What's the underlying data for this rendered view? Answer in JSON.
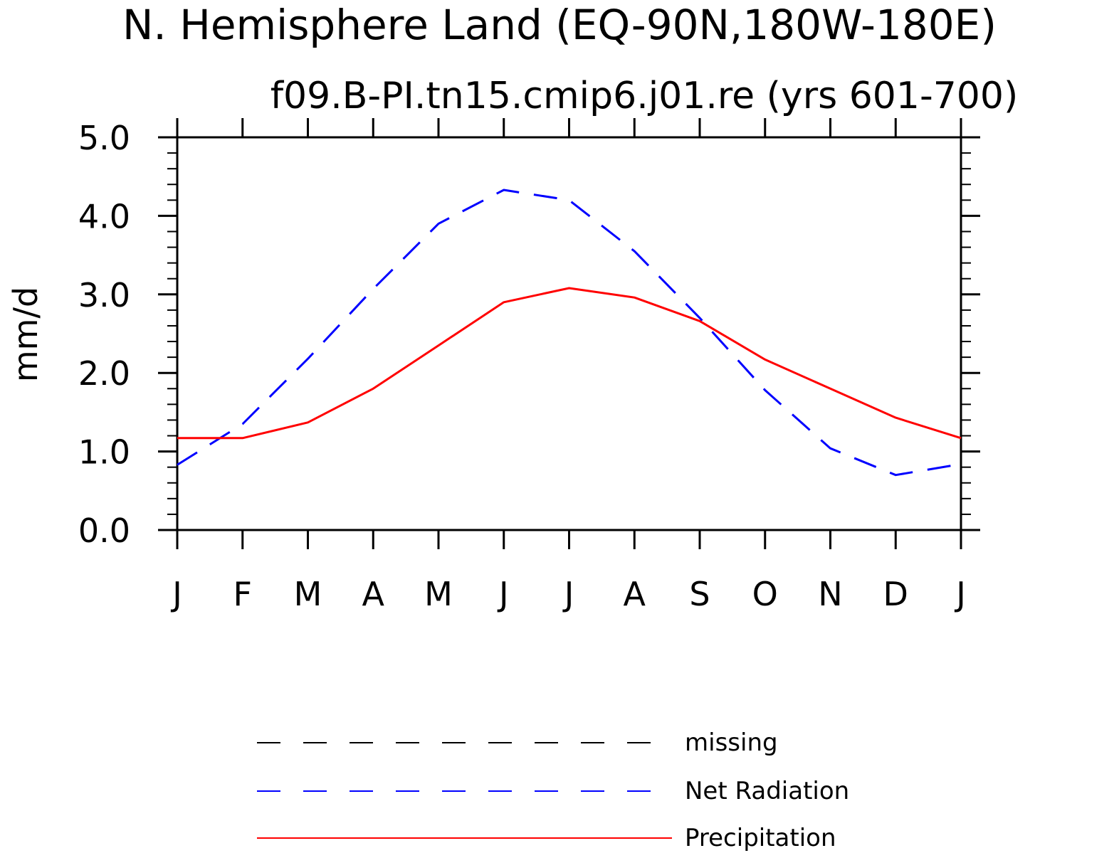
{
  "chart_data": {
    "type": "line",
    "title": "N. Hemisphere Land (EQ-90N,180W-180E)",
    "subtitle": "f09.B-PI.tn15.cmip6.j01.re (yrs 601-700)",
    "xlabel": "",
    "ylabel": "mm/d",
    "categories": [
      "J",
      "F",
      "M",
      "A",
      "M",
      "J",
      "J",
      "A",
      "S",
      "O",
      "N",
      "D",
      "J"
    ],
    "ylim": [
      0,
      5
    ],
    "yticks": [
      "0.0",
      "1.0",
      "2.0",
      "3.0",
      "4.0",
      "5.0"
    ],
    "series": [
      {
        "name": "Net Radiation",
        "color": "#0000ff",
        "dash": "dashed",
        "values": [
          0.83,
          1.35,
          2.18,
          3.07,
          3.9,
          4.33,
          4.2,
          3.55,
          2.7,
          1.78,
          1.04,
          0.7,
          0.84
        ]
      },
      {
        "name": "Precipitation",
        "color": "#ff0000",
        "dash": "solid",
        "values": [
          1.17,
          1.17,
          1.37,
          1.8,
          2.35,
          2.9,
          3.08,
          2.96,
          2.66,
          2.17,
          1.8,
          1.43,
          1.17
        ]
      }
    ],
    "legend": {
      "position": "bottom-center",
      "entries": [
        {
          "label": "missing",
          "color": "#000000",
          "dash": "dashed"
        },
        {
          "label": "Net Radiation",
          "color": "#0000ff",
          "dash": "dashed"
        },
        {
          "label": "Precipitation",
          "color": "#ff0000",
          "dash": "solid"
        }
      ]
    },
    "grid": false
  }
}
